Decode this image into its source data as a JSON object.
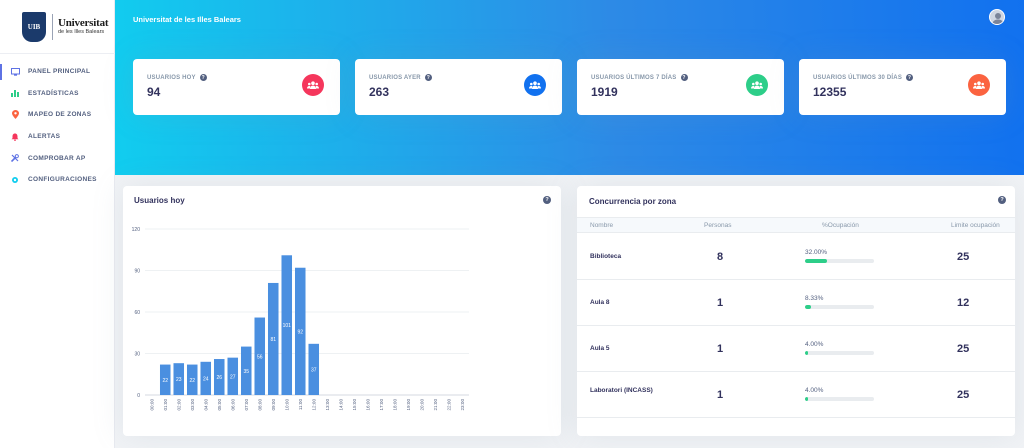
{
  "logo": {
    "mark": "UIB",
    "line1": "Universitat",
    "line2": "de les Illes Balears"
  },
  "header": {
    "brand": "Universitat de les Illes Balears",
    "avatar_icon": "user-avatar-icon"
  },
  "sidebar": {
    "items": [
      {
        "label": "PANEL PRINCIPAL",
        "icon": "monitor-icon",
        "color": "#5e72e4",
        "active": true
      },
      {
        "label": "ESTADÍSTICAS",
        "icon": "bar-chart-icon",
        "color": "#2dce89",
        "active": false
      },
      {
        "label": "MAPEO DE ZONAS",
        "icon": "map-pin-icon",
        "color": "#fb6340",
        "active": false
      },
      {
        "label": "ALERTAS",
        "icon": "bell-icon",
        "color": "#f5365c",
        "active": false
      },
      {
        "label": "COMPROBAR AP",
        "icon": "tools-icon",
        "color": "#5e72e4",
        "active": false
      },
      {
        "label": "CONFIGURACIONES",
        "icon": "gear-icon",
        "color": "#11cdef",
        "active": false
      }
    ]
  },
  "stats": [
    {
      "label": "USUARIOS HOY",
      "value": "94",
      "color": "#f5365c",
      "icon": "users-icon"
    },
    {
      "label": "USUARIOS AYER",
      "value": "263",
      "color": "#1171ef",
      "icon": "users-icon"
    },
    {
      "label": "USUARIOS ÚLTIMOS 7 DÍAS",
      "value": "1919",
      "color": "#2dce89",
      "icon": "users-icon"
    },
    {
      "label": "USUARIOS ÚLTIMOS 30 DÍAS",
      "value": "12355",
      "color": "#fb6340",
      "icon": "users-icon"
    }
  ],
  "usuarios_panel": {
    "title": "Usuarios hoy",
    "help": "?"
  },
  "chart_data": {
    "type": "bar",
    "title": "Usuarios hoy",
    "categories": [
      "00:00",
      "01:00",
      "02:00",
      "03:00",
      "04:00",
      "05:00",
      "06:00",
      "07:00",
      "08:00",
      "09:00",
      "10:00",
      "11:00",
      "12:00",
      "13:00",
      "14:00",
      "15:00",
      "16:00",
      "17:00",
      "18:00",
      "19:00",
      "20:00",
      "21:00",
      "22:00",
      "23:00"
    ],
    "values": [
      0,
      22,
      23,
      22,
      24,
      26,
      27,
      35,
      56,
      81,
      101,
      92,
      37,
      0,
      0,
      0,
      0,
      0,
      0,
      0,
      0,
      0,
      0,
      0
    ],
    "ylim": [
      0,
      120
    ],
    "yticks": [
      0,
      30,
      60,
      90,
      120
    ],
    "bar_color": "#4a8fe0",
    "grid": true,
    "legend": "none"
  },
  "concurrencia": {
    "title": "Concurrencia por zona",
    "help": "?",
    "columns": [
      "Nombre",
      "Personas",
      "%Ocupación",
      "Limite ocupación"
    ],
    "rows": [
      {
        "name": "Biblioteca",
        "personas": "8",
        "pct_text": "32.00%",
        "pct": 0.32,
        "limite": "25"
      },
      {
        "name": "Aula 8",
        "personas": "1",
        "pct_text": "8.33%",
        "pct": 0.0833,
        "limite": "12"
      },
      {
        "name": "Aula 5",
        "personas": "1",
        "pct_text": "4.00%",
        "pct": 0.04,
        "limite": "25"
      },
      {
        "name": "Laboratori (INCASS)",
        "personas": "1",
        "pct_text": "4.00%",
        "pct": 0.04,
        "limite": "25"
      }
    ]
  }
}
